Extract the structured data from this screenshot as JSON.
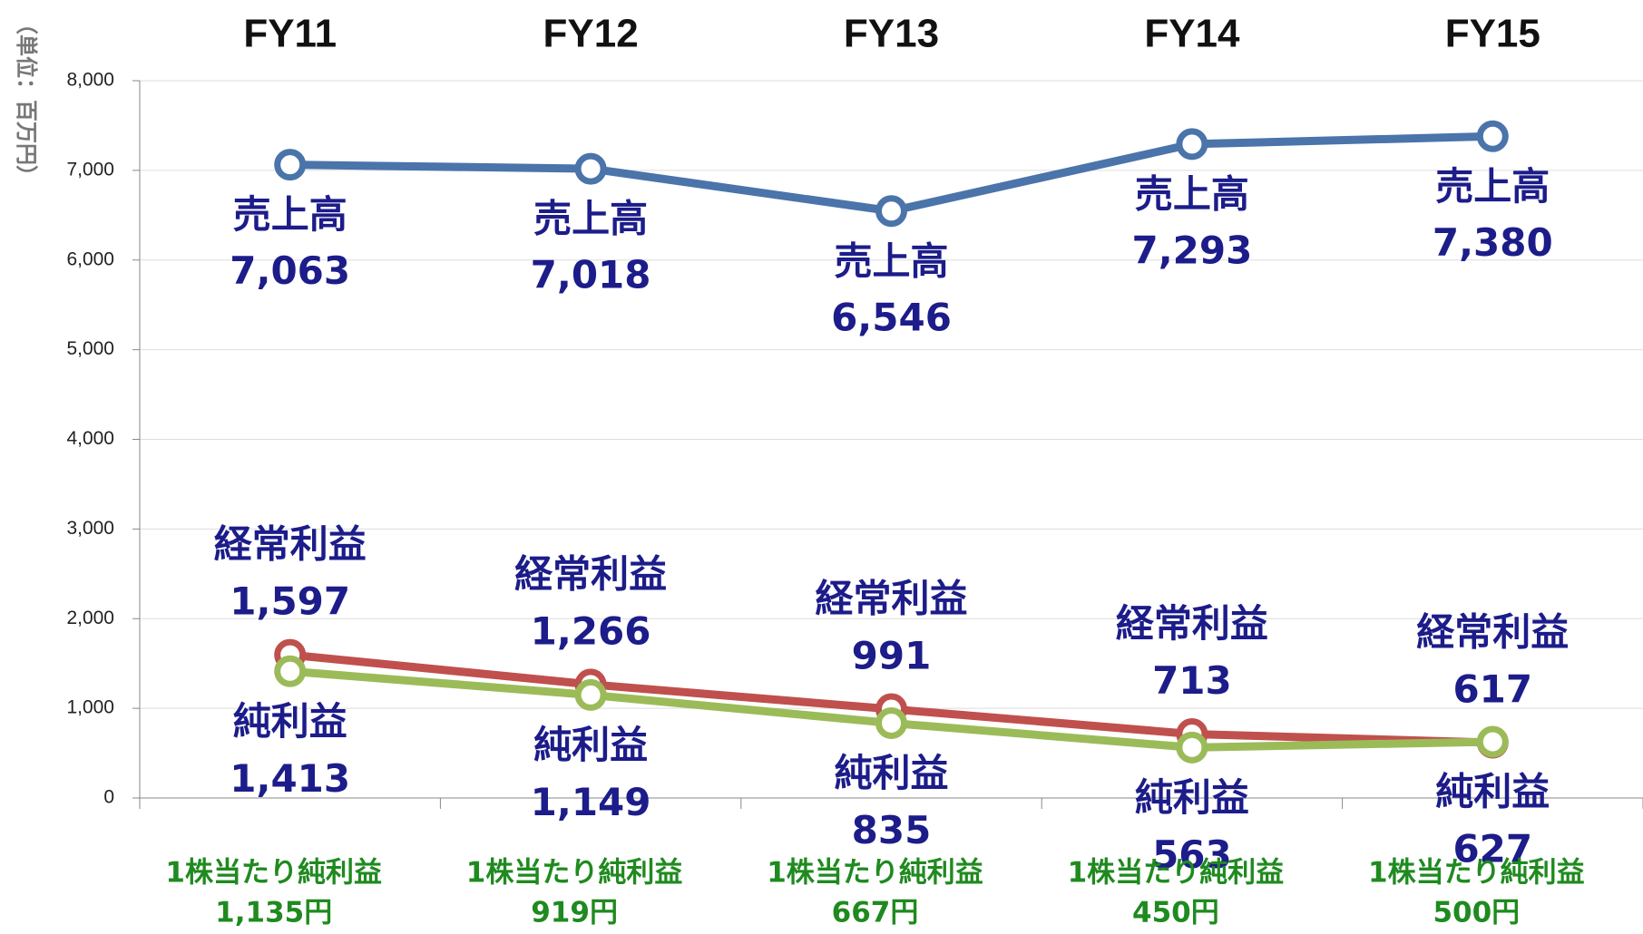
{
  "chart_data": {
    "type": "line",
    "y_axis_label": "（単位：百万円）",
    "categories": [
      "FY11",
      "FY12",
      "FY13",
      "FY14",
      "FY15"
    ],
    "ylim": [
      0,
      8000
    ],
    "yticks": [
      0,
      {
        "value": 1000,
        "label": "1,000"
      },
      {
        "value": 2000,
        "label": "2,000"
      },
      {
        "value": 3000,
        "label": "3,000"
      },
      {
        "value": 4000,
        "label": "4,000"
      },
      {
        "value": 5000,
        "label": "5,000"
      },
      {
        "value": 6000,
        "label": "6,000"
      },
      {
        "value": 7000,
        "label": "7,000"
      },
      {
        "value": 8000,
        "label": "8,000"
      }
    ],
    "grid": true,
    "series": [
      {
        "name": "売上高",
        "color": "#4a74aa",
        "values": [
          7063,
          7018,
          6546,
          7293,
          7380
        ],
        "value_labels": [
          "7,063",
          "7,018",
          "6,546",
          "7,293",
          "7,380"
        ]
      },
      {
        "name": "経常利益",
        "color": "#c0504d",
        "values": [
          1597,
          1266,
          991,
          713,
          617
        ],
        "value_labels": [
          "1,597",
          "1,266",
          "991",
          "713",
          "617"
        ]
      },
      {
        "name": "純利益",
        "color": "#9bbb59",
        "values": [
          1413,
          1149,
          835,
          563,
          627
        ],
        "value_labels": [
          "1,413",
          "1,149",
          "835",
          "563",
          "627"
        ]
      }
    ],
    "eps": {
      "label": "1株当たり純利益",
      "values": [
        1135,
        919,
        667,
        450,
        500
      ],
      "value_labels": [
        "1,135円",
        "919円",
        "667円",
        "450円",
        "500円"
      ]
    }
  }
}
